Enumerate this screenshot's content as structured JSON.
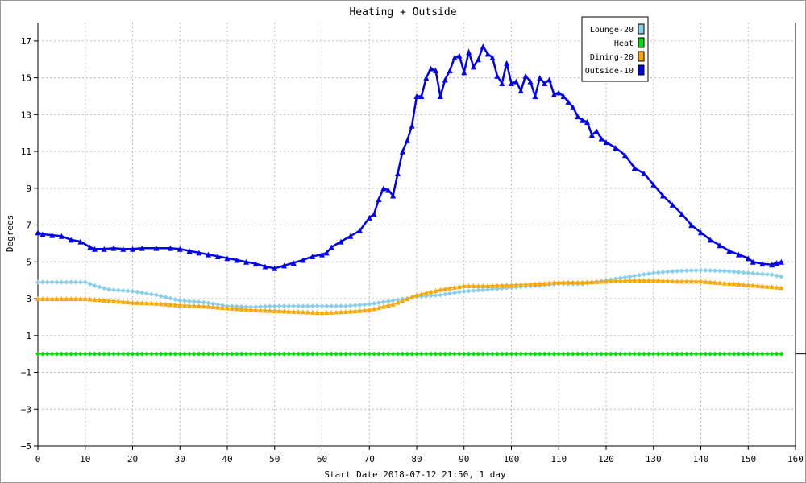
{
  "chart_data": {
    "type": "line",
    "title": "Heating + Outside",
    "xlabel": "Start Date 2018-07-12 21:50, 1 day",
    "ylabel": "Degrees",
    "xlim": [
      0,
      160
    ],
    "ylim": [
      -5,
      18
    ],
    "x_ticks": [
      0,
      10,
      20,
      30,
      40,
      50,
      60,
      70,
      80,
      90,
      100,
      110,
      120,
      130,
      140,
      150,
      160
    ],
    "y_ticks": [
      -5,
      -3,
      -1,
      1,
      3,
      5,
      7,
      9,
      11,
      13,
      15,
      17
    ],
    "y_tick_labels": [
      "−5",
      "−3",
      "−1",
      "1",
      "3",
      "5",
      "7",
      "9",
      "11",
      "13",
      "15",
      "17"
    ],
    "grid": true,
    "legend_position": "top-right",
    "series": [
      {
        "name": "Lounge-20",
        "color": "#87ceeb",
        "marker": "diamond",
        "points": [
          [
            0,
            3.9
          ],
          [
            5,
            3.9
          ],
          [
            10,
            3.9
          ],
          [
            12,
            3.7
          ],
          [
            15,
            3.5
          ],
          [
            20,
            3.4
          ],
          [
            25,
            3.2
          ],
          [
            30,
            2.9
          ],
          [
            35,
            2.8
          ],
          [
            40,
            2.6
          ],
          [
            45,
            2.55
          ],
          [
            50,
            2.6
          ],
          [
            55,
            2.6
          ],
          [
            60,
            2.6
          ],
          [
            65,
            2.6
          ],
          [
            70,
            2.7
          ],
          [
            75,
            2.9
          ],
          [
            80,
            3.1
          ],
          [
            85,
            3.2
          ],
          [
            90,
            3.4
          ],
          [
            95,
            3.5
          ],
          [
            100,
            3.6
          ],
          [
            105,
            3.7
          ],
          [
            110,
            3.8
          ],
          [
            115,
            3.8
          ],
          [
            120,
            4.0
          ],
          [
            125,
            4.2
          ],
          [
            130,
            4.4
          ],
          [
            135,
            4.5
          ],
          [
            140,
            4.55
          ],
          [
            145,
            4.5
          ],
          [
            150,
            4.4
          ],
          [
            155,
            4.3
          ],
          [
            157,
            4.2
          ]
        ]
      },
      {
        "name": "Heat",
        "color": "#00dd00",
        "marker": "diamond",
        "points": [
          [
            0,
            0
          ],
          [
            157,
            0
          ]
        ]
      },
      {
        "name": "Dining-20",
        "color": "#ffa500",
        "marker": "triangle",
        "points": [
          [
            0,
            3.0
          ],
          [
            10,
            3.0
          ],
          [
            15,
            2.9
          ],
          [
            20,
            2.8
          ],
          [
            25,
            2.75
          ],
          [
            30,
            2.65
          ],
          [
            35,
            2.6
          ],
          [
            40,
            2.5
          ],
          [
            45,
            2.4
          ],
          [
            50,
            2.35
          ],
          [
            55,
            2.3
          ],
          [
            60,
            2.25
          ],
          [
            65,
            2.3
          ],
          [
            70,
            2.4
          ],
          [
            75,
            2.7
          ],
          [
            80,
            3.2
          ],
          [
            85,
            3.5
          ],
          [
            90,
            3.7
          ],
          [
            95,
            3.7
          ],
          [
            100,
            3.75
          ],
          [
            105,
            3.8
          ],
          [
            110,
            3.9
          ],
          [
            115,
            3.9
          ],
          [
            120,
            3.95
          ],
          [
            125,
            4.0
          ],
          [
            130,
            4.0
          ],
          [
            135,
            3.95
          ],
          [
            140,
            3.95
          ],
          [
            145,
            3.85
          ],
          [
            150,
            3.75
          ],
          [
            155,
            3.65
          ],
          [
            157,
            3.6
          ]
        ]
      },
      {
        "name": "Outside-10",
        "color": "#0000ee",
        "marker": "triangle",
        "points": [
          [
            0,
            6.6
          ],
          [
            1,
            6.5
          ],
          [
            3,
            6.45
          ],
          [
            5,
            6.4
          ],
          [
            7,
            6.2
          ],
          [
            9,
            6.1
          ],
          [
            11,
            5.8
          ],
          [
            12,
            5.7
          ],
          [
            14,
            5.7
          ],
          [
            16,
            5.75
          ],
          [
            18,
            5.7
          ],
          [
            20,
            5.7
          ],
          [
            22,
            5.75
          ],
          [
            25,
            5.75
          ],
          [
            28,
            5.75
          ],
          [
            30,
            5.7
          ],
          [
            32,
            5.6
          ],
          [
            34,
            5.5
          ],
          [
            36,
            5.4
          ],
          [
            38,
            5.3
          ],
          [
            40,
            5.2
          ],
          [
            42,
            5.1
          ],
          [
            44,
            5.0
          ],
          [
            46,
            4.9
          ],
          [
            48,
            4.75
          ],
          [
            50,
            4.65
          ],
          [
            52,
            4.8
          ],
          [
            54,
            4.95
          ],
          [
            56,
            5.1
          ],
          [
            58,
            5.3
          ],
          [
            60,
            5.4
          ],
          [
            61,
            5.5
          ],
          [
            62,
            5.8
          ],
          [
            64,
            6.1
          ],
          [
            66,
            6.4
          ],
          [
            68,
            6.7
          ],
          [
            70,
            7.4
          ],
          [
            71,
            7.6
          ],
          [
            72,
            8.4
          ],
          [
            73,
            9.0
          ],
          [
            74,
            8.9
          ],
          [
            75,
            8.6
          ],
          [
            76,
            9.8
          ],
          [
            77,
            11.0
          ],
          [
            78,
            11.6
          ],
          [
            79,
            12.4
          ],
          [
            80,
            14.0
          ],
          [
            81,
            14.0
          ],
          [
            82,
            15.0
          ],
          [
            83,
            15.5
          ],
          [
            84,
            15.4
          ],
          [
            85,
            14.0
          ],
          [
            86,
            14.9
          ],
          [
            87,
            15.4
          ],
          [
            88,
            16.1
          ],
          [
            89,
            16.2
          ],
          [
            90,
            15.3
          ],
          [
            91,
            16.4
          ],
          [
            92,
            15.6
          ],
          [
            93,
            16.0
          ],
          [
            94,
            16.7
          ],
          [
            95,
            16.3
          ],
          [
            96,
            16.1
          ],
          [
            97,
            15.1
          ],
          [
            98,
            14.7
          ],
          [
            99,
            15.8
          ],
          [
            100,
            14.7
          ],
          [
            101,
            14.8
          ],
          [
            102,
            14.3
          ],
          [
            103,
            15.1
          ],
          [
            104,
            14.8
          ],
          [
            105,
            14.0
          ],
          [
            106,
            15.0
          ],
          [
            107,
            14.7
          ],
          [
            108,
            14.9
          ],
          [
            109,
            14.1
          ],
          [
            110,
            14.2
          ],
          [
            111,
            14.0
          ],
          [
            112,
            13.7
          ],
          [
            113,
            13.4
          ],
          [
            114,
            12.9
          ],
          [
            115,
            12.7
          ],
          [
            116,
            12.6
          ],
          [
            117,
            11.9
          ],
          [
            118,
            12.1
          ],
          [
            119,
            11.7
          ],
          [
            120,
            11.5
          ],
          [
            122,
            11.2
          ],
          [
            124,
            10.8
          ],
          [
            126,
            10.1
          ],
          [
            128,
            9.8
          ],
          [
            130,
            9.2
          ],
          [
            132,
            8.6
          ],
          [
            134,
            8.1
          ],
          [
            136,
            7.6
          ],
          [
            138,
            7.0
          ],
          [
            140,
            6.6
          ],
          [
            142,
            6.2
          ],
          [
            144,
            5.9
          ],
          [
            146,
            5.6
          ],
          [
            148,
            5.4
          ],
          [
            150,
            5.2
          ],
          [
            151,
            5.0
          ],
          [
            153,
            4.9
          ],
          [
            155,
            4.85
          ],
          [
            156,
            4.95
          ],
          [
            157,
            5.0
          ]
        ]
      }
    ]
  }
}
